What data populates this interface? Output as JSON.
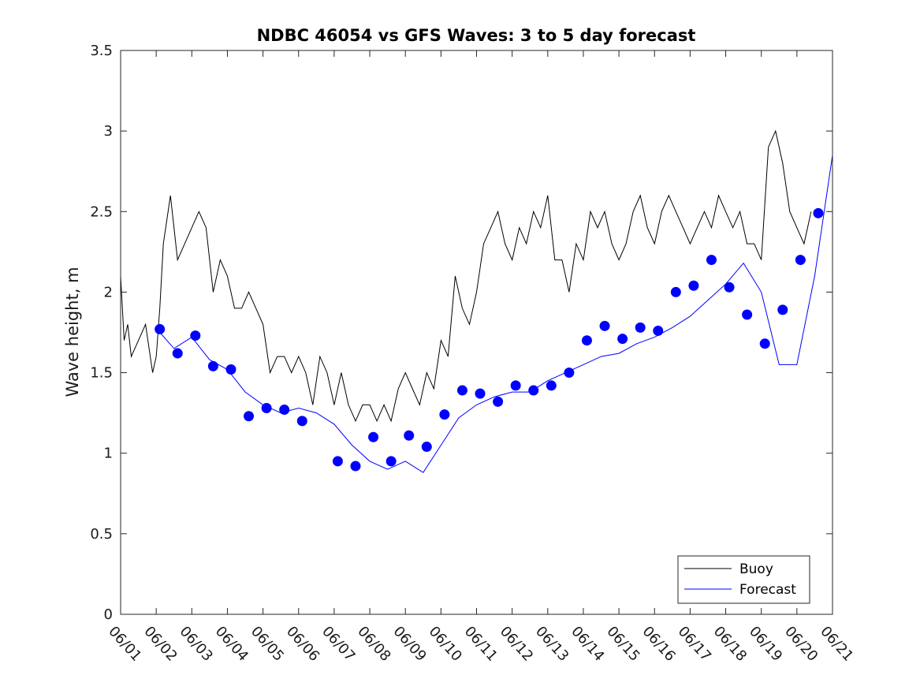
{
  "chart_data": {
    "type": "line",
    "title": "NDBC 46054 vs GFS Waves: 3 to 5 day forecast",
    "ylabel": "Wave height, m",
    "xlabel": "",
    "x_unit": "days since start of 06/01",
    "xlim": [
      0,
      20
    ],
    "ylim": [
      0,
      3.5
    ],
    "yticks": [
      0,
      0.5,
      1,
      1.5,
      2,
      2.5,
      3,
      3.5
    ],
    "ytick_labels": [
      "0",
      "0.5",
      "1",
      "1.5",
      "2",
      "2.5",
      "3",
      "3.5"
    ],
    "xtick_labels": [
      "06/01",
      "06/02",
      "06/03",
      "06/04",
      "06/05",
      "06/06",
      "06/07",
      "06/08",
      "06/09",
      "06/10",
      "06/11",
      "06/12",
      "06/13",
      "06/14",
      "06/15",
      "06/16",
      "06/17",
      "06/18",
      "06/19",
      "06/20",
      "06/21"
    ],
    "grid": false,
    "legend": {
      "position": "bottom-right",
      "entries": [
        "Buoy",
        "Forecast"
      ]
    },
    "colors": {
      "buoy": "#000000",
      "forecast": "#0000ff"
    },
    "series": [
      {
        "name": "Buoy",
        "x": [
          0,
          0.1,
          0.2,
          0.3,
          0.5,
          0.7,
          0.9,
          1.0,
          1.1,
          1.2,
          1.4,
          1.6,
          1.8,
          2.0,
          2.2,
          2.4,
          2.6,
          2.8,
          3.0,
          3.2,
          3.4,
          3.6,
          3.8,
          4.0,
          4.2,
          4.4,
          4.6,
          4.8,
          5.0,
          5.2,
          5.4,
          5.6,
          5.8,
          6.0,
          6.2,
          6.4,
          6.6,
          6.8,
          7.0,
          7.2,
          7.4,
          7.6,
          7.8,
          8.0,
          8.2,
          8.4,
          8.6,
          8.8,
          9.0,
          9.2,
          9.4,
          9.6,
          9.8,
          10.0,
          10.2,
          10.4,
          10.6,
          10.8,
          11.0,
          11.2,
          11.4,
          11.6,
          11.8,
          12.0,
          12.2,
          12.4,
          12.6,
          12.8,
          13.0,
          13.2,
          13.4,
          13.6,
          13.8,
          14.0,
          14.2,
          14.4,
          14.6,
          14.8,
          15.0,
          15.2,
          15.4,
          15.6,
          15.8,
          16.0,
          16.2,
          16.4,
          16.6,
          16.8,
          17.0,
          17.2,
          17.4,
          17.6,
          17.8,
          18.0,
          18.2,
          18.4,
          18.6,
          18.8,
          19.0,
          19.2,
          19.4
        ],
        "y": [
          2.1,
          1.7,
          1.8,
          1.6,
          1.7,
          1.8,
          1.5,
          1.6,
          1.9,
          2.3,
          2.6,
          2.2,
          2.3,
          2.4,
          2.5,
          2.4,
          2.0,
          2.2,
          2.1,
          1.9,
          1.9,
          2.0,
          1.9,
          1.8,
          1.5,
          1.6,
          1.6,
          1.5,
          1.6,
          1.5,
          1.3,
          1.6,
          1.5,
          1.3,
          1.5,
          1.3,
          1.2,
          1.3,
          1.3,
          1.2,
          1.3,
          1.2,
          1.4,
          1.5,
          1.4,
          1.3,
          1.5,
          1.4,
          1.7,
          1.6,
          2.1,
          1.9,
          1.8,
          2.0,
          2.3,
          2.4,
          2.5,
          2.3,
          2.2,
          2.4,
          2.3,
          2.5,
          2.4,
          2.6,
          2.2,
          2.2,
          2.0,
          2.3,
          2.2,
          2.5,
          2.4,
          2.5,
          2.3,
          2.2,
          2.3,
          2.5,
          2.6,
          2.4,
          2.3,
          2.5,
          2.6,
          2.5,
          2.4,
          2.3,
          2.4,
          2.5,
          2.4,
          2.6,
          2.5,
          2.4,
          2.5,
          2.3,
          2.3,
          2.2,
          2.9,
          3.0,
          2.8,
          2.5,
          2.4,
          2.3,
          2.5
        ]
      },
      {
        "name": "Forecast",
        "x": [
          1.1,
          1.5,
          2.0,
          2.5,
          3.0,
          3.5,
          4.0,
          4.5,
          5.0,
          5.5,
          6.0,
          6.5,
          7.0,
          7.5,
          8.0,
          8.5,
          9.0,
          9.5,
          10.0,
          10.5,
          11.0,
          11.5,
          12.0,
          12.5,
          13.0,
          13.5,
          14.0,
          14.5,
          15.0,
          15.5,
          16.0,
          16.5,
          17.0,
          17.5,
          18.0,
          18.5,
          19.0,
          19.5,
          20.0
        ],
        "y": [
          1.75,
          1.65,
          1.72,
          1.58,
          1.52,
          1.38,
          1.3,
          1.25,
          1.28,
          1.25,
          1.18,
          1.05,
          0.95,
          0.9,
          0.95,
          0.88,
          1.05,
          1.22,
          1.3,
          1.35,
          1.38,
          1.38,
          1.45,
          1.5,
          1.55,
          1.6,
          1.62,
          1.68,
          1.72,
          1.78,
          1.85,
          1.95,
          2.05,
          2.18,
          2.0,
          1.55,
          1.55,
          2.1,
          2.85
        ]
      }
    ],
    "points": {
      "name": "Forecast",
      "x": [
        1.1,
        1.6,
        2.1,
        2.6,
        3.1,
        3.6,
        4.1,
        4.6,
        5.1,
        6.1,
        6.6,
        7.1,
        7.6,
        8.1,
        8.6,
        9.1,
        9.6,
        10.1,
        10.6,
        11.1,
        11.6,
        12.1,
        12.6,
        13.1,
        13.6,
        14.1,
        14.6,
        15.1,
        15.6,
        16.1,
        16.6,
        17.1,
        17.6,
        18.1,
        18.6,
        19.1,
        19.6
      ],
      "y": [
        1.77,
        1.62,
        1.73,
        1.54,
        1.52,
        1.23,
        1.28,
        1.27,
        1.2,
        0.95,
        0.92,
        1.1,
        0.95,
        1.11,
        1.04,
        1.24,
        1.39,
        1.37,
        1.32,
        1.42,
        1.39,
        1.42,
        1.5,
        1.7,
        1.79,
        1.71,
        1.78,
        1.76,
        2.0,
        2.04,
        2.2,
        2.03,
        1.86,
        1.68,
        1.89,
        2.2,
        2.49
      ]
    }
  }
}
